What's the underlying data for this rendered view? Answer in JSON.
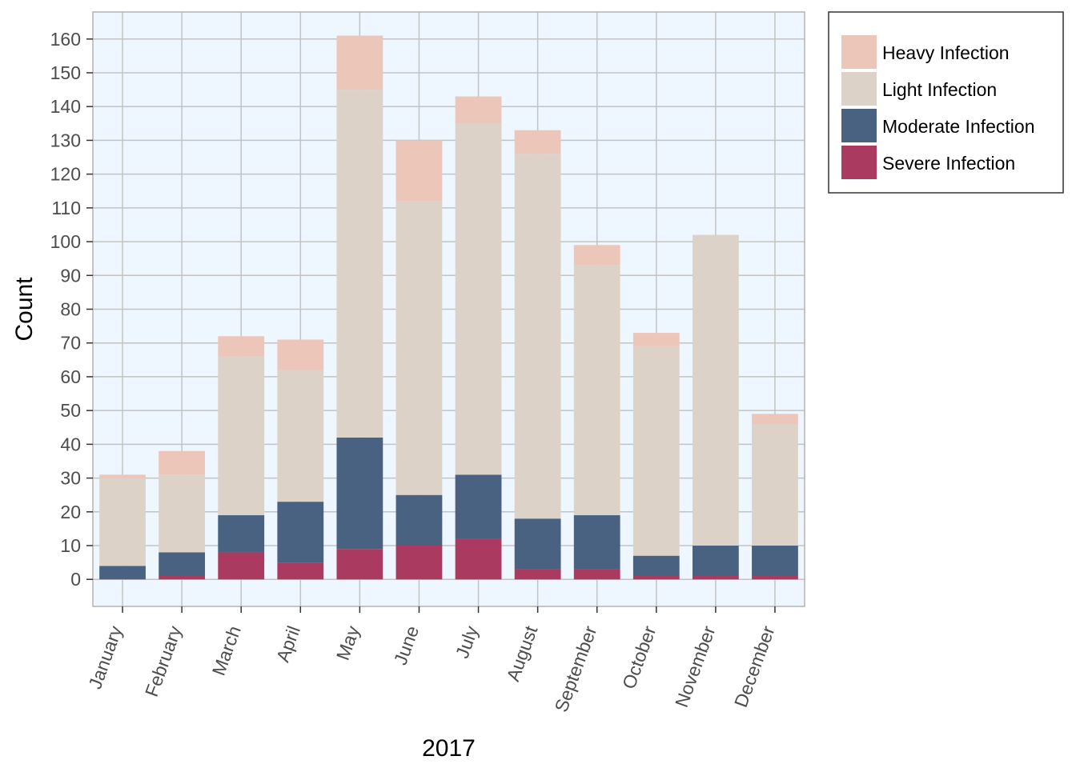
{
  "chart_data": {
    "type": "bar",
    "stacked": true,
    "categories": [
      "January",
      "February",
      "March",
      "April",
      "May",
      "June",
      "July",
      "August",
      "September",
      "October",
      "November",
      "December"
    ],
    "series": [
      {
        "name": "Severe Infection",
        "color": "#ab3a60",
        "values": [
          0,
          1,
          8,
          5,
          9,
          10,
          12,
          3,
          3,
          1,
          1,
          1
        ]
      },
      {
        "name": "Moderate Infection",
        "color": "#4a6282",
        "values": [
          4,
          7,
          11,
          18,
          33,
          15,
          19,
          15,
          16,
          6,
          9,
          9
        ]
      },
      {
        "name": "Light Infection",
        "color": "#dcd2c7",
        "values": [
          26,
          23,
          47,
          39,
          103,
          87,
          104,
          108,
          74,
          62,
          92,
          36
        ]
      },
      {
        "name": "Heavy Infection",
        "color": "#edc6ba",
        "values": [
          1,
          7,
          6,
          9,
          16,
          18,
          8,
          7,
          6,
          4,
          0,
          3
        ]
      }
    ],
    "legend_order": [
      "Heavy Infection",
      "Light Infection",
      "Moderate Infection",
      "Severe Infection"
    ],
    "xlabel": "2017",
    "ylabel": "Count",
    "ylim": [
      -8,
      168
    ],
    "yticks": [
      0,
      10,
      20,
      30,
      40,
      50,
      60,
      70,
      80,
      90,
      100,
      110,
      120,
      130,
      140,
      150,
      160
    ],
    "grid": true,
    "legend_position": "right",
    "panel_background": "#eef6ff",
    "grid_color": "#c3c3c3"
  }
}
